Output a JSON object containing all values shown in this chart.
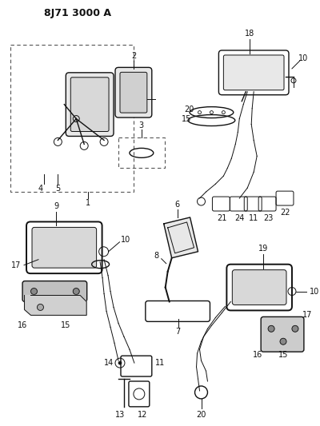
{
  "title": "8J71 3000 A",
  "bg_color": "#ffffff",
  "line_color": "#111111",
  "title_fontsize": 9,
  "label_fontsize": 7.5,
  "figsize": [
    4.0,
    5.33
  ],
  "dpi": 100
}
